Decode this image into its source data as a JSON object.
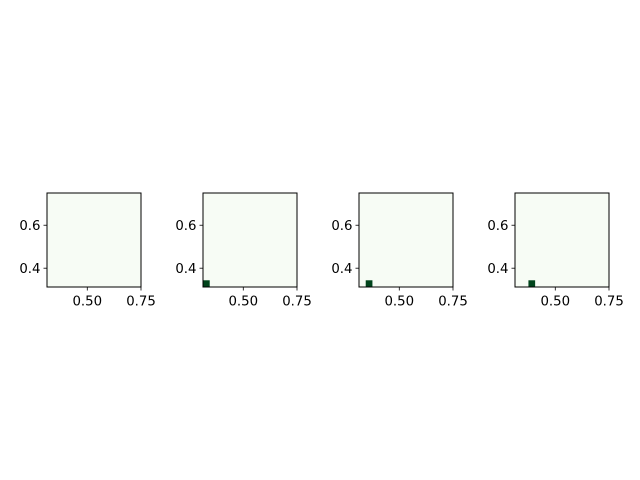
{
  "chart_data": [
    {
      "type": "heatmap",
      "title": "",
      "xlabel": "",
      "ylabel": "",
      "xlim": [
        0.3125,
        0.75
      ],
      "ylim": [
        0.3125,
        0.75
      ],
      "x_ticks": [
        {
          "value": 0.5,
          "label": "0.50"
        },
        {
          "value": 0.75,
          "label": "0.75"
        }
      ],
      "y_ticks": [
        {
          "value": 0.4,
          "label": "0.4"
        },
        {
          "value": 0.6,
          "label": "0.6"
        }
      ],
      "background_color": "#f7fcf5",
      "cell_color": "#00441b",
      "cells": []
    },
    {
      "type": "heatmap",
      "title": "",
      "xlabel": "",
      "ylabel": "",
      "xlim": [
        0.3125,
        0.75
      ],
      "ylim": [
        0.3125,
        0.75
      ],
      "x_ticks": [
        {
          "value": 0.5,
          "label": "0.50"
        },
        {
          "value": 0.75,
          "label": "0.75"
        }
      ],
      "y_ticks": [
        {
          "value": 0.4,
          "label": "0.4"
        },
        {
          "value": 0.6,
          "label": "0.6"
        }
      ],
      "background_color": "#f7fcf5",
      "cell_color": "#00441b",
      "cells": [
        {
          "x0": 0.3125,
          "x1": 0.34375,
          "y0": 0.3125,
          "y1": 0.34375
        }
      ]
    },
    {
      "type": "heatmap",
      "title": "",
      "xlabel": "",
      "ylabel": "",
      "xlim": [
        0.3125,
        0.75
      ],
      "ylim": [
        0.3125,
        0.75
      ],
      "x_ticks": [
        {
          "value": 0.5,
          "label": "0.50"
        },
        {
          "value": 0.75,
          "label": "0.75"
        }
      ],
      "y_ticks": [
        {
          "value": 0.4,
          "label": "0.4"
        },
        {
          "value": 0.6,
          "label": "0.6"
        }
      ],
      "background_color": "#f7fcf5",
      "cell_color": "#00441b",
      "cells": [
        {
          "x0": 0.34375,
          "x1": 0.375,
          "y0": 0.3125,
          "y1": 0.34375
        }
      ]
    },
    {
      "type": "heatmap",
      "title": "",
      "xlabel": "",
      "ylabel": "",
      "xlim": [
        0.3125,
        0.75
      ],
      "ylim": [
        0.3125,
        0.75
      ],
      "x_ticks": [
        {
          "value": 0.5,
          "label": "0.50"
        },
        {
          "value": 0.75,
          "label": "0.75"
        }
      ],
      "y_ticks": [
        {
          "value": 0.4,
          "label": "0.4"
        },
        {
          "value": 0.6,
          "label": "0.6"
        }
      ],
      "background_color": "#f7fcf5",
      "cell_color": "#00441b",
      "cells": [
        {
          "x0": 0.375,
          "x1": 0.40625,
          "y0": 0.3125,
          "y1": 0.34375
        }
      ]
    }
  ]
}
